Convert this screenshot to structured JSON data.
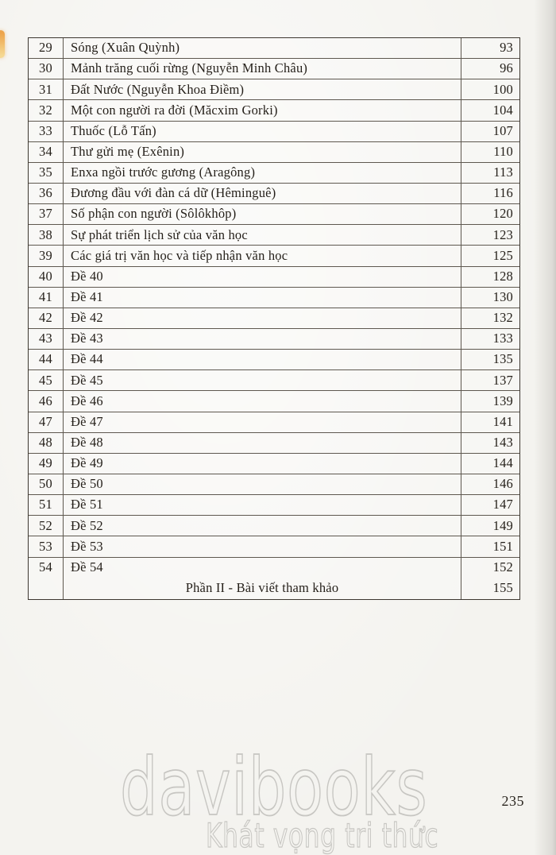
{
  "colors": {
    "bookmark": "#eda44b",
    "watermark_outline": "#c7c6c2",
    "ink": "#241f19",
    "table_line": "#372f26"
  },
  "table": {
    "rows": [
      {
        "no": "29",
        "title": "Sóng (Xuân Quỳnh)",
        "page": "93"
      },
      {
        "no": "30",
        "title": "Mảnh trăng cuối rừng (Nguyễn Minh Châu)",
        "page": "96"
      },
      {
        "no": "31",
        "title": "Đất Nước (Nguyễn Khoa Điềm)",
        "page": "100"
      },
      {
        "no": "32",
        "title": "Một con người ra đời (Măcxim Gorki)",
        "page": "104"
      },
      {
        "no": "33",
        "title": "Thuốc (Lỗ Tấn)",
        "page": "107"
      },
      {
        "no": "34",
        "title": "Thư gửi mẹ (Exênin)",
        "page": "110"
      },
      {
        "no": "35",
        "title": "Enxa ngồi trước gương (Aragông)",
        "page": "113"
      },
      {
        "no": "36",
        "title": "Đương đầu với đàn cá dữ (Hêminguê)",
        "page": "116"
      },
      {
        "no": "37",
        "title": "Số phận con người (Sôlôkhôp)",
        "page": "120"
      },
      {
        "no": "38",
        "title": "Sự phát triển lịch sử của văn học",
        "page": "123"
      },
      {
        "no": "39",
        "title": "Các giá trị văn học và tiếp nhận văn học",
        "page": "125"
      },
      {
        "no": "40",
        "title": "Đề 40",
        "page": "128"
      },
      {
        "no": "41",
        "title": "Đề 41",
        "page": "130"
      },
      {
        "no": "42",
        "title": "Đề 42",
        "page": "132"
      },
      {
        "no": "43",
        "title": "Đề 43",
        "page": "133"
      },
      {
        "no": "44",
        "title": "Đề 44",
        "page": "135"
      },
      {
        "no": "45",
        "title": "Đề 45",
        "page": "137"
      },
      {
        "no": "46",
        "title": "Đề 46",
        "page": "139"
      },
      {
        "no": "47",
        "title": "Đề 47",
        "page": "141"
      },
      {
        "no": "48",
        "title": "Đề 48",
        "page": "143"
      },
      {
        "no": "49",
        "title": "Đề 49",
        "page": "144"
      },
      {
        "no": "50",
        "title": "Đề 50",
        "page": "146"
      },
      {
        "no": "51",
        "title": "Đề 51",
        "page": "147"
      },
      {
        "no": "52",
        "title": "Đề 52",
        "page": "149"
      },
      {
        "no": "53",
        "title": "Đề 53",
        "page": "151"
      },
      {
        "no": "54",
        "title": "Đề 54",
        "page": "152"
      }
    ],
    "section_row": {
      "no": "",
      "title": "Phần II - Bài viết tham khảo",
      "page": "155"
    }
  },
  "watermark": {
    "brand": "davibooks",
    "slogan": "Khát vọng tri thức"
  },
  "page": {
    "number": "235"
  }
}
